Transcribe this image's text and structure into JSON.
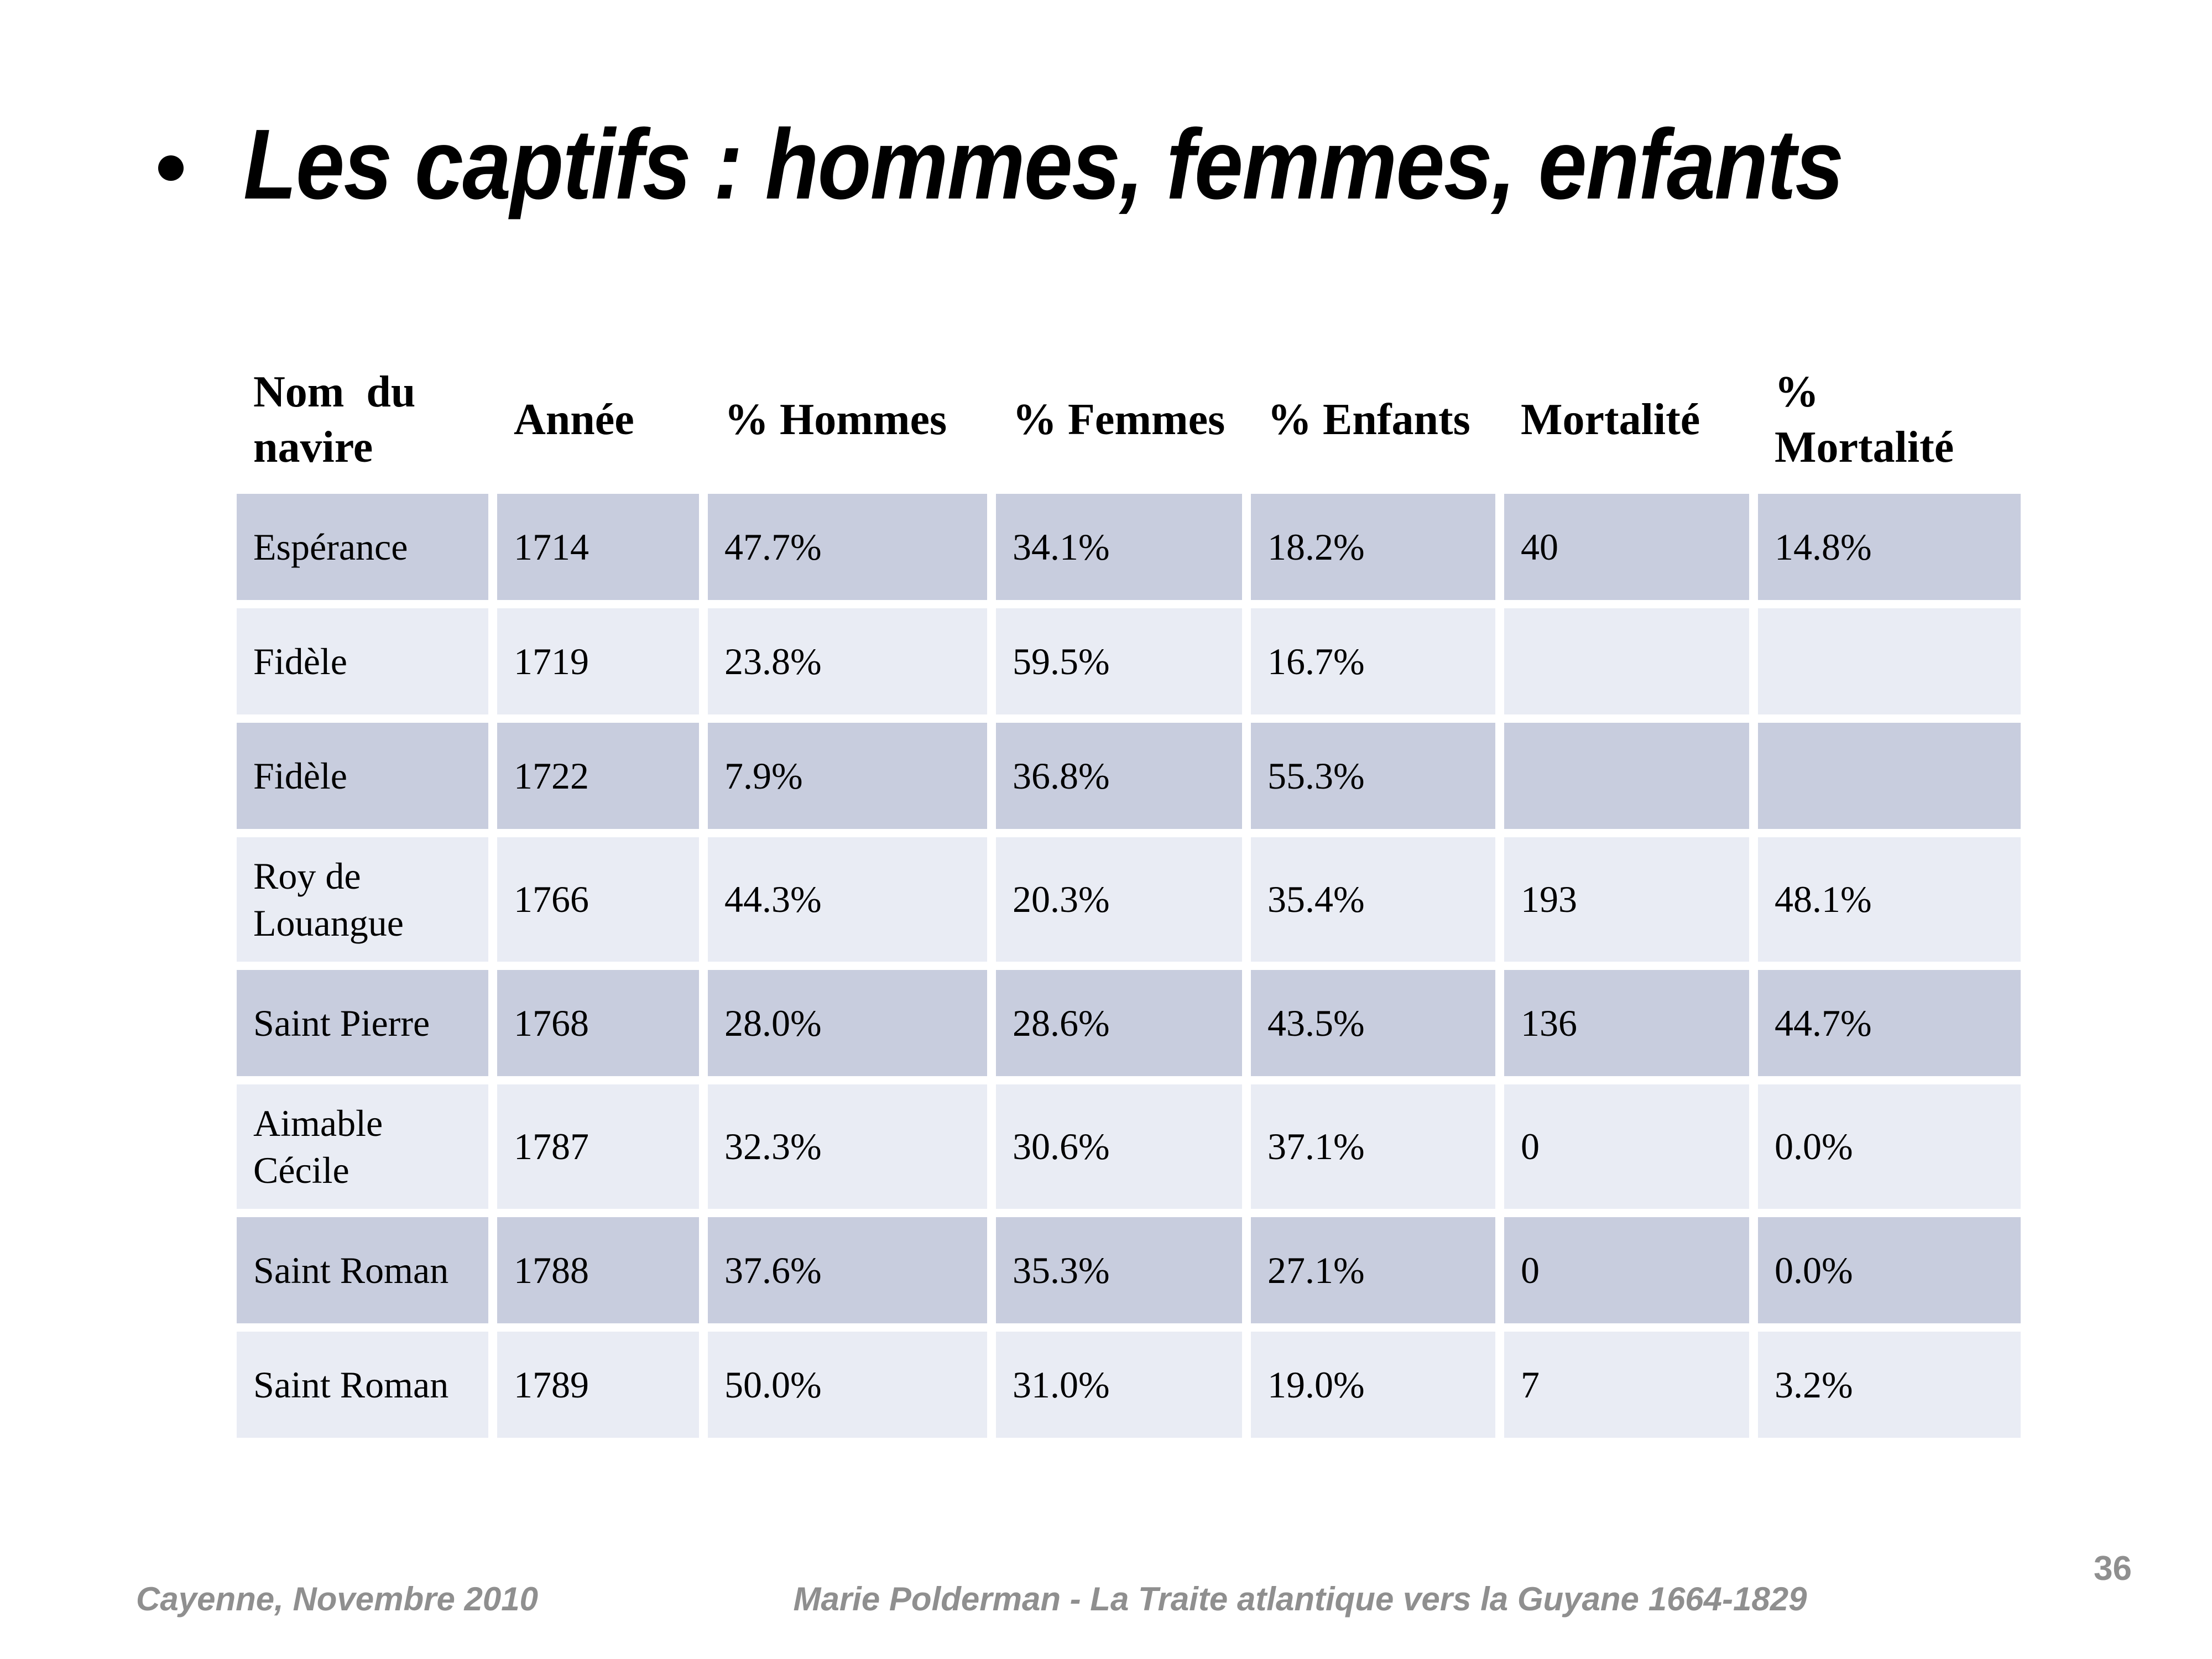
{
  "slide": {
    "title": "Les captifs : hommes, femmes, enfants",
    "page_number": "36",
    "footer_left": "Cayenne, Novembre 2010",
    "footer_center": "Marie Polderman - La Traite atlantique vers la Guyane 1664-1829"
  },
  "colors": {
    "row_dark": "#c8cdde",
    "row_light": "#e9ecf4",
    "footer_text": "#8f8f8f",
    "title_text": "#000000"
  },
  "table": {
    "headers": [
      "Nom  du\nnavire",
      "Année",
      "% Hommes",
      "% Femmes",
      "% Enfants",
      "Mortalité",
      "%\nMortalité"
    ],
    "rows": [
      {
        "cells": [
          "Espérance",
          "1714",
          "47.7%",
          "34.1%",
          "18.2%",
          "40",
          "14.8%"
        ]
      },
      {
        "cells": [
          "Fidèle",
          "1719",
          "23.8%",
          "59.5%",
          "16.7%",
          "",
          ""
        ]
      },
      {
        "cells": [
          "Fidèle",
          "1722",
          "7.9%",
          "36.8%",
          "55.3%",
          "",
          ""
        ]
      },
      {
        "cells": [
          "Roy de\nLouangue",
          "1766",
          "44.3%",
          "20.3%",
          "35.4%",
          "193",
          "48.1%"
        ]
      },
      {
        "cells": [
          "Saint Pierre",
          "1768",
          "28.0%",
          "28.6%",
          "43.5%",
          "136",
          "44.7%"
        ]
      },
      {
        "cells": [
          "Aimable\nCécile",
          "1787",
          "32.3%",
          "30.6%",
          "37.1%",
          "0",
          "0.0%"
        ]
      },
      {
        "cells": [
          "Saint Roman",
          "1788",
          "37.6%",
          "35.3%",
          "27.1%",
          "0",
          "0.0%"
        ]
      },
      {
        "cells": [
          "Saint Roman",
          "1789",
          "50.0%",
          "31.0%",
          "19.0%",
          "7",
          "3.2%"
        ]
      }
    ]
  }
}
